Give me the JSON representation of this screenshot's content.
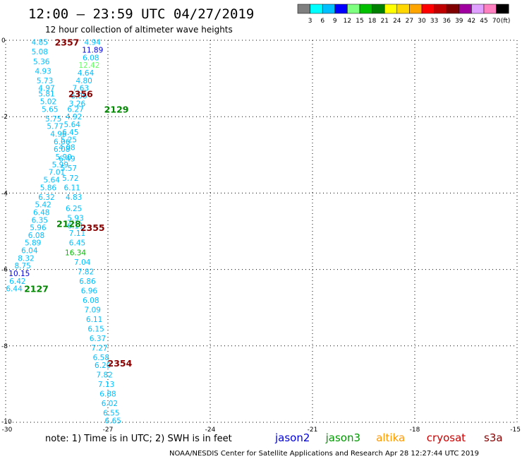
{
  "header": {
    "title": "12:00 — 23:59 UTC 04/27/2019",
    "subtitle": "12 hour collection of altimeter wave heights"
  },
  "color_scale": {
    "labels": [
      "3",
      "6",
      "9",
      "12",
      "15",
      "18",
      "21",
      "24",
      "27",
      "30",
      "33",
      "36",
      "39",
      "42",
      "45",
      "70",
      "(ft)"
    ],
    "colors": [
      "#7f7f7f",
      "#00ffff",
      "#00bfff",
      "#0000ff",
      "#7fff7f",
      "#00c000",
      "#008000",
      "#ffff00",
      "#ffd700",
      "#ffa500",
      "#ff0000",
      "#c00000",
      "#800000",
      "#a000a0",
      "#e0a0ff",
      "#ff80c0",
      "#000000"
    ]
  },
  "footer": {
    "note": "note:  1) Time is in UTC;  2) SWH is in feet",
    "credit": "NOAA/NESDIS Center for Satellite Applications and Research     Apr 28 12:27:44 UTC 2019",
    "missions": [
      {
        "name": "jason2",
        "color": "#0000dd"
      },
      {
        "name": "jason3",
        "color": "#009900"
      },
      {
        "name": "altika",
        "color": "#ff9900"
      },
      {
        "name": "cryosat",
        "color": "#cc0000"
      },
      {
        "name": "s3a",
        "color": "#880000"
      }
    ]
  },
  "chart_data": {
    "type": "scatter",
    "title": "12:00 — 23:59 UTC 04/27/2019",
    "xlim": [
      -30,
      -15
    ],
    "ylim": [
      -10,
      0
    ],
    "xticks": [
      -30,
      -27,
      -24,
      -21,
      -18,
      -15
    ],
    "yticks": [
      0,
      -2,
      -4,
      -6,
      -8,
      -10
    ],
    "grid": true,
    "xtick_labels": [
      "-30",
      "-27",
      "-24",
      "-21",
      "-18",
      "-15"
    ],
    "ytick_labels": [
      "0",
      "-2",
      "-4",
      "-6",
      "-8",
      "-10"
    ],
    "points": [
      {
        "x": -29.0,
        "y": -0.05,
        "v": "4.85",
        "c": "#00bfff"
      },
      {
        "x": -29.0,
        "y": -0.3,
        "v": "5.08",
        "c": "#00bfff"
      },
      {
        "x": -28.95,
        "y": -0.55,
        "v": "5.36",
        "c": "#00bfff"
      },
      {
        "x": -28.9,
        "y": -0.8,
        "v": "4.93",
        "c": "#00bfff"
      },
      {
        "x": -28.85,
        "y": -1.05,
        "v": "5.73",
        "c": "#00bfff"
      },
      {
        "x": -28.8,
        "y": -1.25,
        "v": "4.97",
        "c": "#00bfff"
      },
      {
        "x": -28.8,
        "y": -1.4,
        "v": "5.81",
        "c": "#00bfff"
      },
      {
        "x": -28.75,
        "y": -1.6,
        "v": "5.02",
        "c": "#00bfff"
      },
      {
        "x": -28.7,
        "y": -1.8,
        "v": "5.65",
        "c": "#00bfff"
      },
      {
        "x": -28.6,
        "y": -2.05,
        "v": "5.75",
        "c": "#00bfff"
      },
      {
        "x": -28.55,
        "y": -2.25,
        "v": "5.77",
        "c": "#00bfff"
      },
      {
        "x": -28.45,
        "y": -2.45,
        "v": "4.96",
        "c": "#00bfff"
      },
      {
        "x": -28.35,
        "y": -2.65,
        "v": "6.06",
        "c": "#00bfff"
      },
      {
        "x": -28.35,
        "y": -2.85,
        "v": "6.08",
        "c": "#00bfff"
      },
      {
        "x": -28.3,
        "y": -3.05,
        "v": "5.90",
        "c": "#00bfff"
      },
      {
        "x": -28.4,
        "y": -3.25,
        "v": "5.99",
        "c": "#00bfff"
      },
      {
        "x": -28.5,
        "y": -3.45,
        "v": "7.01",
        "c": "#00bfff"
      },
      {
        "x": -28.65,
        "y": -3.65,
        "v": "5.64",
        "c": "#00bfff"
      },
      {
        "x": -28.75,
        "y": -3.85,
        "v": "5.86",
        "c": "#00bfff"
      },
      {
        "x": -28.8,
        "y": -4.1,
        "v": "6.32",
        "c": "#00bfff"
      },
      {
        "x": -28.9,
        "y": -4.3,
        "v": "5.42",
        "c": "#00bfff"
      },
      {
        "x": -28.95,
        "y": -4.5,
        "v": "6.48",
        "c": "#00bfff"
      },
      {
        "x": -29.0,
        "y": -4.7,
        "v": "6.35",
        "c": "#00bfff"
      },
      {
        "x": -29.05,
        "y": -4.9,
        "v": "5.96",
        "c": "#00bfff"
      },
      {
        "x": -29.1,
        "y": -5.1,
        "v": "6.08",
        "c": "#00bfff"
      },
      {
        "x": -29.2,
        "y": -5.3,
        "v": "5.89",
        "c": "#00bfff"
      },
      {
        "x": -29.3,
        "y": -5.5,
        "v": "6.04",
        "c": "#00bfff"
      },
      {
        "x": -29.4,
        "y": -5.7,
        "v": "8.32",
        "c": "#00bfff"
      },
      {
        "x": -29.5,
        "y": -5.9,
        "v": "8.75",
        "c": "#00bfff"
      },
      {
        "x": -29.6,
        "y": -6.1,
        "v": "10.15",
        "c": "#0000dd"
      },
      {
        "x": -29.65,
        "y": -6.3,
        "v": "6.42",
        "c": "#00bfff"
      },
      {
        "x": -29.75,
        "y": -6.5,
        "v": "6.44",
        "c": "#00bfff"
      },
      {
        "x": -27.45,
        "y": -0.05,
        "v": "4.94",
        "c": "#00bfff"
      },
      {
        "x": -27.45,
        "y": -0.25,
        "v": "11.89",
        "c": "#0000dd"
      },
      {
        "x": -27.5,
        "y": -0.45,
        "v": "6.08",
        "c": "#00bfff"
      },
      {
        "x": -27.55,
        "y": -0.65,
        "v": "12.42",
        "c": "#66ff66"
      },
      {
        "x": -27.65,
        "y": -0.85,
        "v": "4.64",
        "c": "#00bfff"
      },
      {
        "x": -27.7,
        "y": -1.05,
        "v": "4.80",
        "c": "#00bfff"
      },
      {
        "x": -27.8,
        "y": -1.25,
        "v": "7.63",
        "c": "#00bfff"
      },
      {
        "x": -27.85,
        "y": -1.45,
        "v": "6.06",
        "c": "#00bfff"
      },
      {
        "x": -27.9,
        "y": -1.65,
        "v": "3.26",
        "c": "#00bfff"
      },
      {
        "x": -27.95,
        "y": -1.8,
        "v": "6.27",
        "c": "#00bfff"
      },
      {
        "x": -28.0,
        "y": -2.0,
        "v": "4.92",
        "c": "#00bfff"
      },
      {
        "x": -28.05,
        "y": -2.2,
        "v": "5.64",
        "c": "#00bfff"
      },
      {
        "x": -28.1,
        "y": -2.4,
        "v": "6.45",
        "c": "#00bfff"
      },
      {
        "x": -28.15,
        "y": -2.6,
        "v": "5.25",
        "c": "#00bfff"
      },
      {
        "x": -28.2,
        "y": -2.8,
        "v": "4.08",
        "c": "#00bfff"
      },
      {
        "x": -28.2,
        "y": -3.1,
        "v": "6.49",
        "c": "#00bfff"
      },
      {
        "x": -28.15,
        "y": -3.35,
        "v": "5.57",
        "c": "#00bfff"
      },
      {
        "x": -28.1,
        "y": -3.6,
        "v": "5.72",
        "c": "#00bfff"
      },
      {
        "x": -28.05,
        "y": -3.85,
        "v": "6.11",
        "c": "#00bfff"
      },
      {
        "x": -28.0,
        "y": -4.1,
        "v": "4.83",
        "c": "#00bfff"
      },
      {
        "x": -28.0,
        "y": -4.4,
        "v": "6.25",
        "c": "#00bfff"
      },
      {
        "x": -27.95,
        "y": -4.65,
        "v": "5.93",
        "c": "#00bfff"
      },
      {
        "x": -27.95,
        "y": -4.85,
        "v": "6.11",
        "c": "#00bfff"
      },
      {
        "x": -27.9,
        "y": -5.05,
        "v": "7.11",
        "c": "#00bfff"
      },
      {
        "x": -27.9,
        "y": -5.3,
        "v": "6.45",
        "c": "#00bfff"
      },
      {
        "x": -27.95,
        "y": -5.55,
        "v": "16.34",
        "c": "#00c000"
      },
      {
        "x": -27.75,
        "y": -5.8,
        "v": "7.04",
        "c": "#00bfff"
      },
      {
        "x": -27.65,
        "y": -6.05,
        "v": "7.82",
        "c": "#00bfff"
      },
      {
        "x": -27.6,
        "y": -6.3,
        "v": "6.86",
        "c": "#00bfff"
      },
      {
        "x": -27.55,
        "y": -6.55,
        "v": "6.96",
        "c": "#00bfff"
      },
      {
        "x": -27.5,
        "y": -6.8,
        "v": "6.08",
        "c": "#00bfff"
      },
      {
        "x": -27.45,
        "y": -7.05,
        "v": "7.09",
        "c": "#00bfff"
      },
      {
        "x": -27.4,
        "y": -7.3,
        "v": "6.11",
        "c": "#00bfff"
      },
      {
        "x": -27.35,
        "y": -7.55,
        "v": "6.15",
        "c": "#00bfff"
      },
      {
        "x": -27.3,
        "y": -7.8,
        "v": "6.37",
        "c": "#00bfff"
      },
      {
        "x": -27.25,
        "y": -8.05,
        "v": "7.27",
        "c": "#00bfff"
      },
      {
        "x": -27.2,
        "y": -8.3,
        "v": "6.58",
        "c": "#00bfff"
      },
      {
        "x": -27.15,
        "y": -8.5,
        "v": "6.20",
        "c": "#00bfff"
      },
      {
        "x": -27.1,
        "y": -8.75,
        "v": "7.82",
        "c": "#00bfff"
      },
      {
        "x": -27.05,
        "y": -9.0,
        "v": "7.13",
        "c": "#00bfff"
      },
      {
        "x": -27.0,
        "y": -9.25,
        "v": "6.88",
        "c": "#00bfff"
      },
      {
        "x": -26.95,
        "y": -9.5,
        "v": "6.02",
        "c": "#00bfff"
      },
      {
        "x": -26.9,
        "y": -9.75,
        "v": "6.55",
        "c": "#00bfff"
      },
      {
        "x": -26.85,
        "y": -9.95,
        "v": "6.65",
        "c": "#00bfff"
      }
    ],
    "pass_labels": [
      {
        "x": -28.2,
        "y": -0.05,
        "v": "2357",
        "c": "#880000"
      },
      {
        "x": -27.8,
        "y": -1.4,
        "v": "2356",
        "c": "#880000"
      },
      {
        "x": -26.75,
        "y": -1.8,
        "v": "2129",
        "c": "#008800"
      },
      {
        "x": -28.15,
        "y": -4.8,
        "v": "2128",
        "c": "#008800"
      },
      {
        "x": -27.45,
        "y": -4.9,
        "v": "2355",
        "c": "#880000"
      },
      {
        "x": -29.1,
        "y": -6.5,
        "v": "2127",
        "c": "#008800"
      },
      {
        "x": -26.65,
        "y": -8.45,
        "v": "2354",
        "c": "#880000"
      }
    ]
  }
}
